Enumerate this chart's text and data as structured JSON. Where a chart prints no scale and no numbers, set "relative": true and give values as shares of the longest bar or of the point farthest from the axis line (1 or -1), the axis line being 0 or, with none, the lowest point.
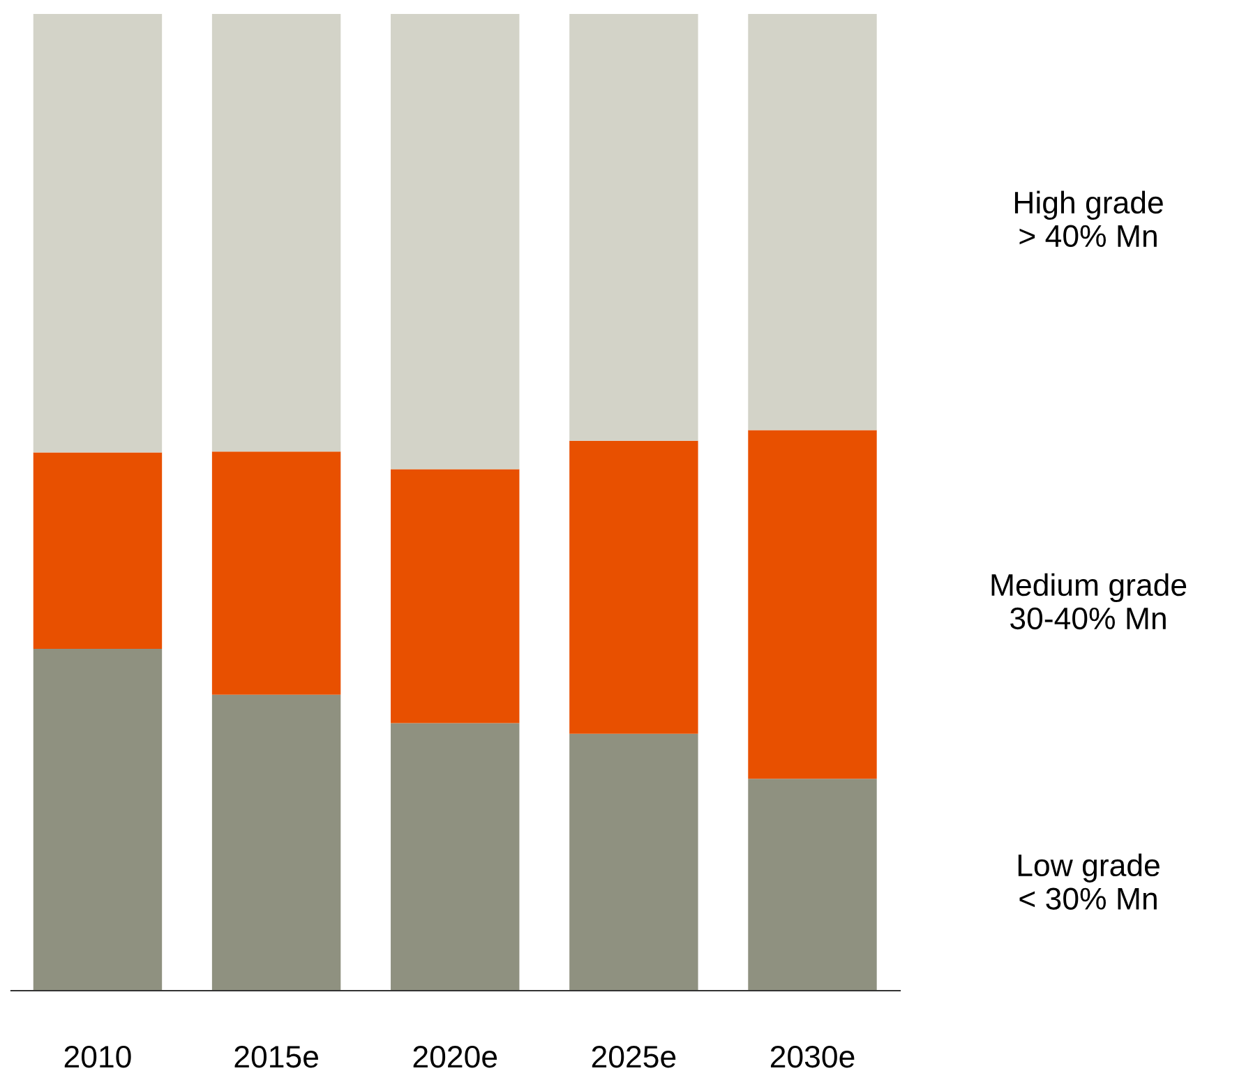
{
  "chart_data": {
    "type": "bar",
    "stacked": true,
    "relative": true,
    "categories": [
      "2010",
      "2015e",
      "2020e",
      "2025e",
      "2030e"
    ],
    "series": [
      {
        "name": "Low grade\n< 30% Mn",
        "color": "#8f9180",
        "values": [
          0.35,
          0.303,
          0.274,
          0.263,
          0.217
        ]
      },
      {
        "name": "Medium grade\n30-40% Mn",
        "color": "#e85000",
        "values": [
          0.201,
          0.249,
          0.26,
          0.3,
          0.357
        ]
      },
      {
        "name": "High grade\n> 40% Mn",
        "color": "#d3d3c8",
        "values": [
          0.449,
          0.448,
          0.466,
          0.437,
          0.426
        ]
      }
    ],
    "grid": false,
    "legend": false
  }
}
